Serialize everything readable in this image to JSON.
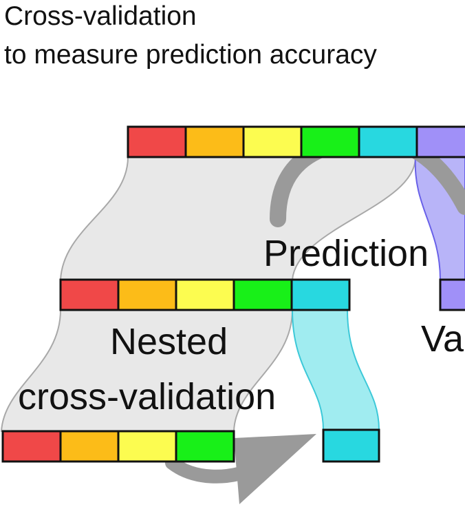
{
  "title": {
    "line1": "Cross-validation",
    "line2": "to measure prediction accuracy"
  },
  "labels": {
    "prediction": "Prediction",
    "nested_line1": "Nested",
    "nested_line2": "cross-validation",
    "validation_partial": "Va"
  },
  "fold_colors": [
    "#f04848",
    "#fcbc18",
    "#fcfc50",
    "#18f018",
    "#28d8e0",
    "#a090f8"
  ],
  "colors": {
    "band_fill": "#e8e8e8",
    "band_stroke": "#a8a8a8",
    "cyan_band_fill": "#a0ecf0",
    "cyan_band_stroke": "#3cc8d8",
    "violet_band_fill": "#b8b4f8",
    "violet_band_stroke": "#6860e8",
    "arrow": "#9a9a9a",
    "outline": "#111111"
  },
  "rows": {
    "outer": {
      "segments": 6
    },
    "middle": {
      "segments": 5
    },
    "inner": {
      "segments": 4
    }
  },
  "icons": [
    "curved-arrow-icon"
  ]
}
